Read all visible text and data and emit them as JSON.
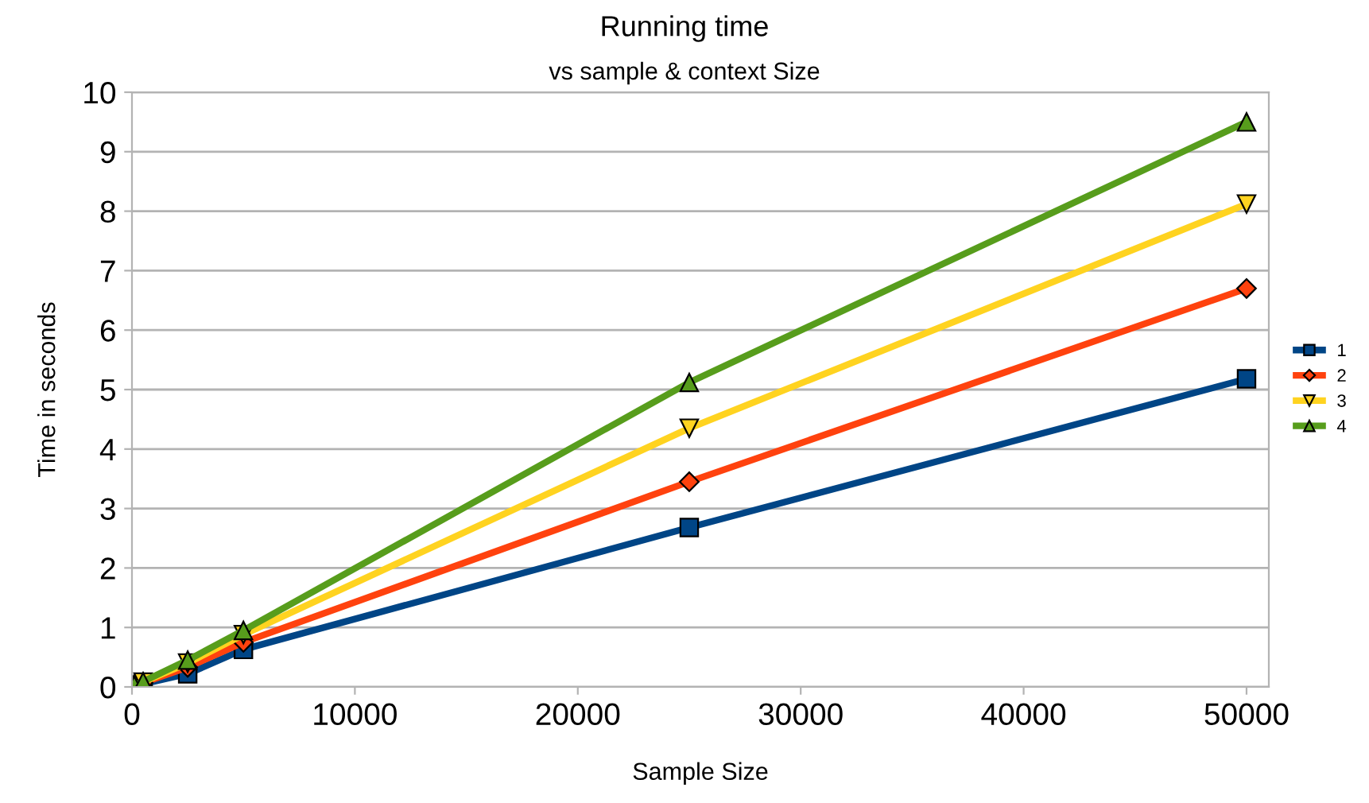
{
  "chart_data": {
    "type": "line",
    "title": "Running time",
    "subtitle": "vs sample & context Size",
    "xlabel": "Sample Size",
    "ylabel": "Time in seconds",
    "x": [
      100,
      500,
      2500,
      5000,
      25000,
      50000
    ],
    "series": [
      {
        "name": "1",
        "color": "#004586",
        "marker": "square",
        "values": [
          0.02,
          0.05,
          0.22,
          0.63,
          2.68,
          5.18
        ]
      },
      {
        "name": "2",
        "color": "#ff420e",
        "marker": "diamond",
        "values": [
          0.03,
          0.07,
          0.33,
          0.75,
          3.45,
          6.7
        ]
      },
      {
        "name": "3",
        "color": "#ffd320",
        "marker": "triangle-down",
        "values": [
          0.03,
          0.08,
          0.4,
          0.88,
          4.35,
          8.12
        ]
      },
      {
        "name": "4",
        "color": "#579d1c",
        "marker": "triangle",
        "values": [
          0.03,
          0.09,
          0.45,
          0.95,
          5.12,
          9.5
        ]
      }
    ],
    "xlim": [
      0,
      51000
    ],
    "xticks": [
      0,
      10000,
      20000,
      30000,
      40000,
      50000
    ],
    "ylim": [
      0,
      10
    ],
    "yticks": [
      0,
      1,
      2,
      3,
      4,
      5,
      6,
      7,
      8,
      9,
      10
    ],
    "grid": "y",
    "legend": "right",
    "line_style": "solid"
  }
}
